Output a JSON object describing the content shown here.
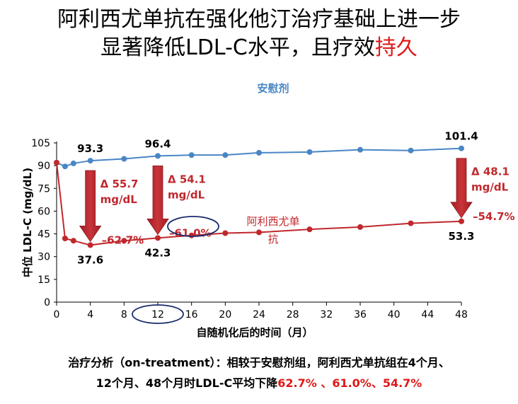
{
  "title": {
    "line1": "阿利西尤单抗在强化他汀治疗基础上进一步",
    "line2_a": "显著降低LDL-C水平，且疗效",
    "line2_b": "持久"
  },
  "footnote": {
    "line1": "治疗分析（on-treatment）：相较于安慰剂组，阿利西尤单抗组在4个月、",
    "line2_a": "12个月、48个月时LDL-C平均下降",
    "line2_b": "62.7% 、61.0%、54.7%"
  },
  "colors": {
    "placebo": "#4a86c5",
    "alirocumab": "#c0282d",
    "title_highlight": "#e01818",
    "circle": "#1a2b6d"
  },
  "chart_data": {
    "type": "line",
    "xlabel": "自随机化后的时间（月）",
    "ylabel": "中位 LDL-C (mg/dL)",
    "xlim": [
      0,
      48
    ],
    "ylim": [
      0,
      105
    ],
    "xticks": [
      0,
      4,
      8,
      12,
      16,
      20,
      24,
      28,
      32,
      36,
      40,
      44,
      48
    ],
    "yticks": [
      0,
      15,
      30,
      45,
      60,
      75,
      90,
      105
    ],
    "series": [
      {
        "name": "安慰剂",
        "color": "#4a86c5",
        "x": [
          0,
          1,
          2,
          4,
          8,
          12,
          16,
          20,
          24,
          30,
          36,
          42,
          48
        ],
        "y": [
          92,
          89.5,
          91.5,
          93.3,
          94.5,
          96.4,
          97,
          97,
          98.5,
          99,
          100.5,
          100,
          101.4
        ]
      },
      {
        "name": "阿利西尤单抗",
        "color": "#c0282d",
        "x": [
          0,
          1,
          2,
          4,
          8,
          12,
          16,
          20,
          24,
          30,
          36,
          42,
          48
        ],
        "y": [
          92,
          42,
          40.5,
          37.6,
          40.5,
          42.3,
          44,
          45.5,
          46,
          48,
          49.5,
          52,
          53.3
        ]
      }
    ],
    "value_labels": [
      {
        "x": 4,
        "y": 93.3,
        "text": "93.3",
        "pos": "above",
        "color": "#000000"
      },
      {
        "x": 12,
        "y": 96.4,
        "text": "96.4",
        "pos": "above",
        "color": "#000000"
      },
      {
        "x": 48,
        "y": 101.4,
        "text": "101.4",
        "pos": "above",
        "color": "#000000"
      },
      {
        "x": 4,
        "y": 37.6,
        "text": "37.6",
        "pos": "below",
        "color": "#000000"
      },
      {
        "x": 12,
        "y": 42.3,
        "text": "42.3",
        "pos": "below",
        "color": "#000000"
      },
      {
        "x": 48,
        "y": 53.3,
        "text": "53.3",
        "pos": "below",
        "color": "#000000"
      }
    ],
    "differences": [
      {
        "x": 4,
        "top": 93.3,
        "bottom": 37.6,
        "delta": "Δ 55.7",
        "unit": "mg/dL",
        "pct": "–62.7%"
      },
      {
        "x": 12,
        "top": 96.4,
        "bottom": 42.3,
        "delta": "Δ 54.1",
        "unit": "mg/dL",
        "pct": "–61.0%"
      },
      {
        "x": 48,
        "top": 101.4,
        "bottom": 53.3,
        "delta": "Δ 48.1",
        "unit": "mg/dL",
        "pct": "–54.7%"
      }
    ],
    "series_labels": {
      "placebo": "安慰剂",
      "alirocumab_1": "阿利西尤单",
      "alirocumab_2": "抗"
    }
  }
}
